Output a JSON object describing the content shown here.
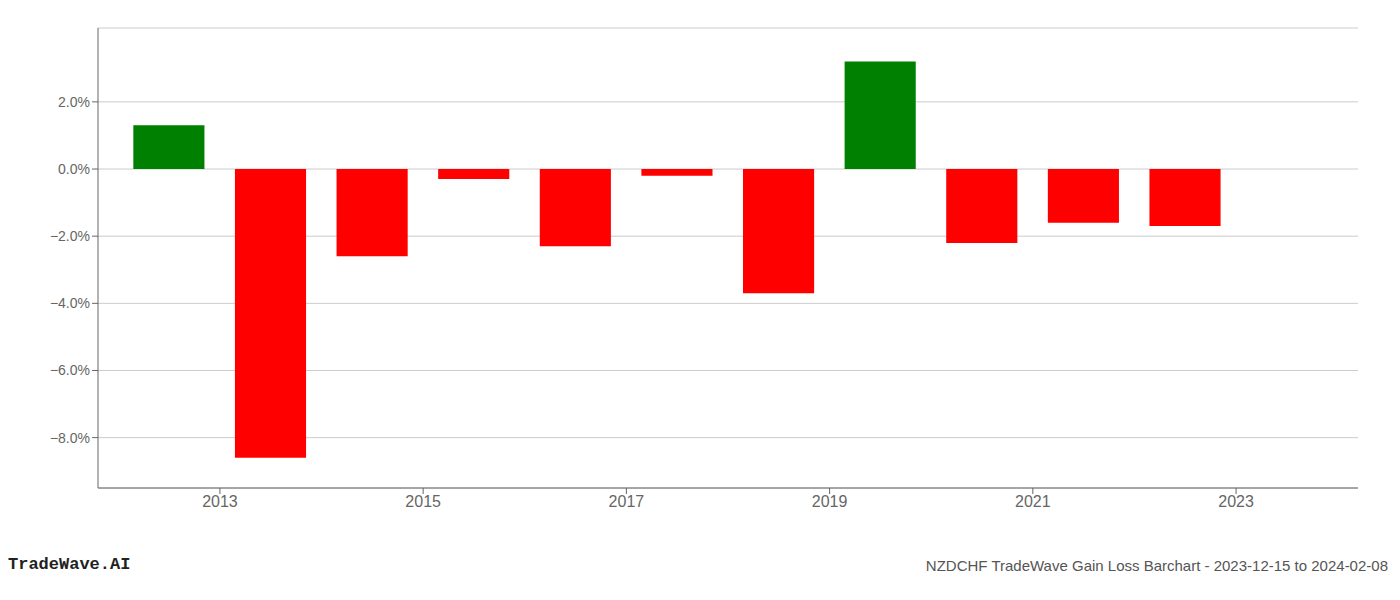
{
  "chart_data": {
    "type": "bar",
    "x": [
      2012.5,
      2013.5,
      2014.5,
      2015.5,
      2016.5,
      2017.5,
      2018.5,
      2019.5,
      2020.5,
      2021.5,
      2022.5
    ],
    "values": [
      0.013,
      -0.086,
      -0.026,
      -0.003,
      -0.023,
      -0.002,
      -0.037,
      0.032,
      -0.022,
      -0.016,
      -0.017
    ],
    "colors": [
      "#008000",
      "#ff0000",
      "#ff0000",
      "#ff0000",
      "#ff0000",
      "#ff0000",
      "#ff0000",
      "#008000",
      "#ff0000",
      "#ff0000",
      "#ff0000"
    ],
    "xlim": [
      2011.8,
      2024.2
    ],
    "xticks": [
      2013,
      2015,
      2017,
      2019,
      2021,
      2023
    ],
    "ylim": [
      -0.095,
      0.042
    ],
    "yticks": [
      {
        "value": 0.02,
        "label": "2.0%"
      },
      {
        "value": 0.0,
        "label": "0.0%"
      },
      {
        "value": -0.02,
        "label": "−2.0%"
      },
      {
        "value": -0.04,
        "label": "−4.0%"
      },
      {
        "value": -0.06,
        "label": "−6.0%"
      },
      {
        "value": -0.08,
        "label": "−8.0%"
      }
    ],
    "grid": true,
    "annotations": [
      "TradeWave.AI",
      "NZDCHF TradeWave Gain Loss Barchart - 2023-12-15 to 2024-02-08"
    ]
  }
}
